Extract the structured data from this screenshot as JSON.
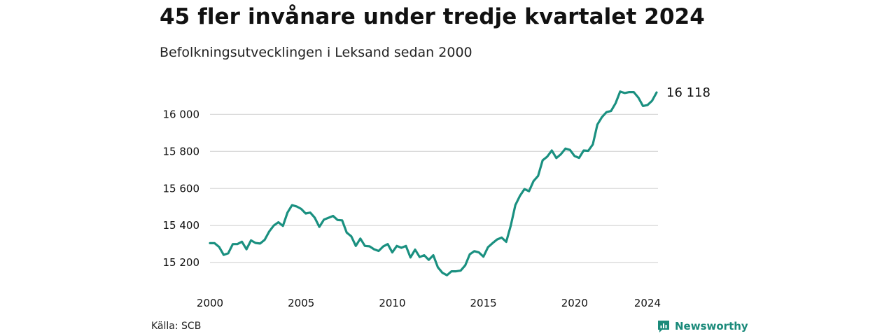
{
  "title": "45 fler invånare under tredje kvartalet 2024",
  "subtitle": "Befolkningsutvecklingen i Leksand sedan 2000",
  "source": "Källa: SCB",
  "brand": {
    "name": "Newsworthy",
    "icon": "newsworthy-logo-icon",
    "color": "#1a8a7a"
  },
  "chart_data": {
    "type": "line",
    "title": "45 fler invånare under tredje kvartalet 2024",
    "subtitle": "Befolkningsutvecklingen i Leksand sedan 2000",
    "xlabel": "",
    "ylabel": "",
    "xlim": [
      2000,
      2024.5
    ],
    "ylim": [
      15110,
      16160
    ],
    "x_ticks": [
      {
        "value": 2000,
        "label": "2000"
      },
      {
        "value": 2005,
        "label": "2005"
      },
      {
        "value": 2010,
        "label": "2010"
      },
      {
        "value": 2015,
        "label": "2015"
      },
      {
        "value": 2020,
        "label": "2020"
      },
      {
        "value": 2024,
        "label": "2024"
      }
    ],
    "y_ticks": [
      {
        "value": 15200,
        "label": "15 200"
      },
      {
        "value": 15400,
        "label": "15 400"
      },
      {
        "value": 15600,
        "label": "15 600"
      },
      {
        "value": 15800,
        "label": "15 800"
      },
      {
        "value": 16000,
        "label": "16 000"
      }
    ],
    "grid": "horizontal",
    "color": "#1a9080",
    "end_label": "16 118",
    "series": [
      {
        "x": [
          2000.0,
          2000.25,
          2000.5,
          2000.75,
          2001.0,
          2001.25,
          2001.5,
          2001.75,
          2002.0,
          2002.25,
          2002.5,
          2002.75,
          2003.0,
          2003.25,
          2003.5,
          2003.75,
          2004.0,
          2004.25,
          2004.5,
          2004.75,
          2005.0,
          2005.25,
          2005.5,
          2005.75,
          2006.0,
          2006.25,
          2006.5,
          2006.75,
          2007.0,
          2007.25,
          2007.5,
          2007.75,
          2008.0,
          2008.25,
          2008.5,
          2008.75,
          2009.0,
          2009.25,
          2009.5,
          2009.75,
          2010.0,
          2010.25,
          2010.5,
          2010.75,
          2011.0,
          2011.25,
          2011.5,
          2011.75,
          2012.0,
          2012.25,
          2012.5,
          2012.75,
          2013.0,
          2013.25,
          2013.5,
          2013.75,
          2014.0,
          2014.25,
          2014.5,
          2014.75,
          2015.0,
          2015.25,
          2015.5,
          2015.75,
          2016.0,
          2016.25,
          2016.5,
          2016.75,
          2017.0,
          2017.25,
          2017.5,
          2017.75,
          2018.0,
          2018.25,
          2018.5,
          2018.75,
          2019.0,
          2019.25,
          2019.5,
          2019.75,
          2020.0,
          2020.25,
          2020.5,
          2020.75,
          2021.0,
          2021.25,
          2021.5,
          2021.75,
          2022.0,
          2022.25,
          2022.5,
          2022.75,
          2023.0,
          2023.25,
          2023.5,
          2023.75,
          2024.0,
          2024.25,
          2024.5
        ],
        "values": [
          15305,
          15305,
          15285,
          15242,
          15250,
          15300,
          15300,
          15313,
          15272,
          15320,
          15306,
          15303,
          15323,
          15368,
          15400,
          15418,
          15398,
          15470,
          15510,
          15503,
          15490,
          15465,
          15470,
          15442,
          15393,
          15432,
          15442,
          15452,
          15430,
          15428,
          15362,
          15342,
          15290,
          15330,
          15290,
          15288,
          15272,
          15263,
          15287,
          15300,
          15255,
          15290,
          15280,
          15290,
          15228,
          15270,
          15230,
          15240,
          15215,
          15240,
          15175,
          15145,
          15132,
          15153,
          15153,
          15157,
          15185,
          15245,
          15262,
          15255,
          15232,
          15283,
          15305,
          15325,
          15335,
          15312,
          15400,
          15510,
          15560,
          15597,
          15585,
          15640,
          15668,
          15752,
          15772,
          15805,
          15764,
          15785,
          15815,
          15808,
          15775,
          15765,
          15805,
          15803,
          15838,
          15945,
          15985,
          16012,
          16018,
          16060,
          16123,
          16115,
          16120,
          16120,
          16090,
          16045,
          16050,
          16073,
          16118
        ]
      }
    ]
  }
}
